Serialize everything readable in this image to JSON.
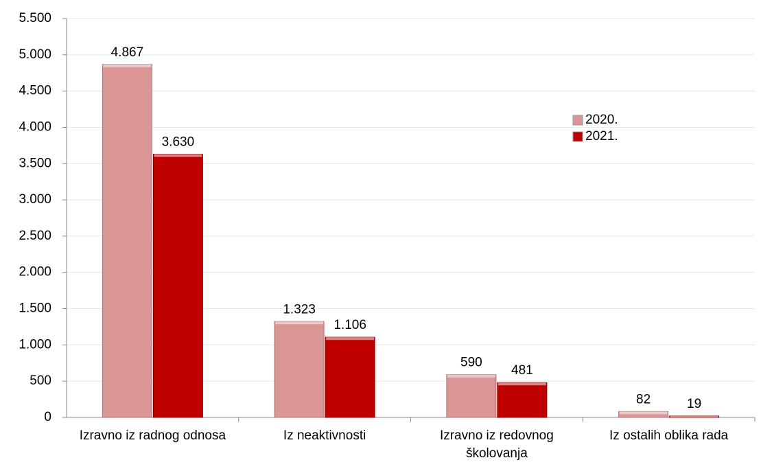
{
  "chart_data": {
    "type": "bar",
    "categories": [
      "Izravno iz radnog odnosa",
      "Iz neaktivnosti",
      "Izravno iz redovnog školovanja",
      "Iz ostalih oblika rada"
    ],
    "series": [
      {
        "name": "2020.",
        "color": "#d99694",
        "values": [
          4867,
          1323,
          590,
          82
        ],
        "value_labels": [
          "4.867",
          "1.323",
          "590",
          "82"
        ]
      },
      {
        "name": "2021.",
        "color": "#c00000",
        "values": [
          3630,
          1106,
          481,
          19
        ],
        "value_labels": [
          "3.630",
          "1.106",
          "481",
          "19"
        ]
      }
    ],
    "ylim": [
      0,
      5500
    ],
    "yticks": [
      0,
      500,
      {
        "value": 1000,
        "label": "1.000"
      },
      {
        "value": 1500,
        "label": "1.500"
      },
      {
        "value": 2000,
        "label": "2.000"
      },
      {
        "value": 2500,
        "label": "2.500"
      },
      {
        "value": 3000,
        "label": "3.000"
      },
      {
        "value": 3500,
        "label": "3.500"
      },
      {
        "value": 4000,
        "label": "4.000"
      },
      {
        "value": 4500,
        "label": "4.500"
      },
      {
        "value": 5000,
        "label": "5.000"
      },
      {
        "value": 5500,
        "label": "5.500"
      }
    ],
    "grid": true,
    "legend": "right"
  }
}
